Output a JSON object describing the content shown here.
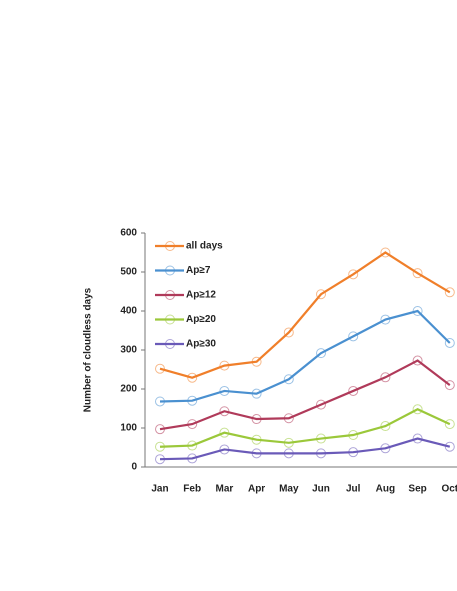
{
  "chart_data": {
    "type": "line",
    "y_label": "Number of cloudless days",
    "categories": [
      "Jan",
      "Feb",
      "Mar",
      "Apr",
      "May",
      "Jun",
      "Jul",
      "Aug",
      "Sep",
      "Oct"
    ],
    "series": [
      {
        "name": "all days",
        "color": "#f07f2a",
        "values": [
          252,
          229,
          260,
          270,
          345,
          443,
          494,
          550,
          497,
          448
        ]
      },
      {
        "name": "Ap≥7",
        "color": "#4a90d0",
        "values": [
          168,
          170,
          195,
          188,
          225,
          292,
          335,
          378,
          400,
          318
        ]
      },
      {
        "name": "Ap≥12",
        "color": "#b03a5a",
        "values": [
          97,
          110,
          143,
          123,
          125,
          160,
          195,
          230,
          273,
          210
        ]
      },
      {
        "name": "Ap≥20",
        "color": "#9bc83a",
        "values": [
          52,
          55,
          88,
          70,
          62,
          73,
          82,
          105,
          148,
          110
        ]
      },
      {
        "name": "Ap≥30",
        "color": "#6a5ab8",
        "values": [
          20,
          22,
          45,
          35,
          35,
          35,
          38,
          48,
          73,
          52
        ]
      }
    ],
    "ylim": [
      0,
      600
    ],
    "yticks": [
      0,
      100,
      200,
      300,
      400,
      500,
      600
    ],
    "grid": false,
    "legend": "top-left"
  }
}
